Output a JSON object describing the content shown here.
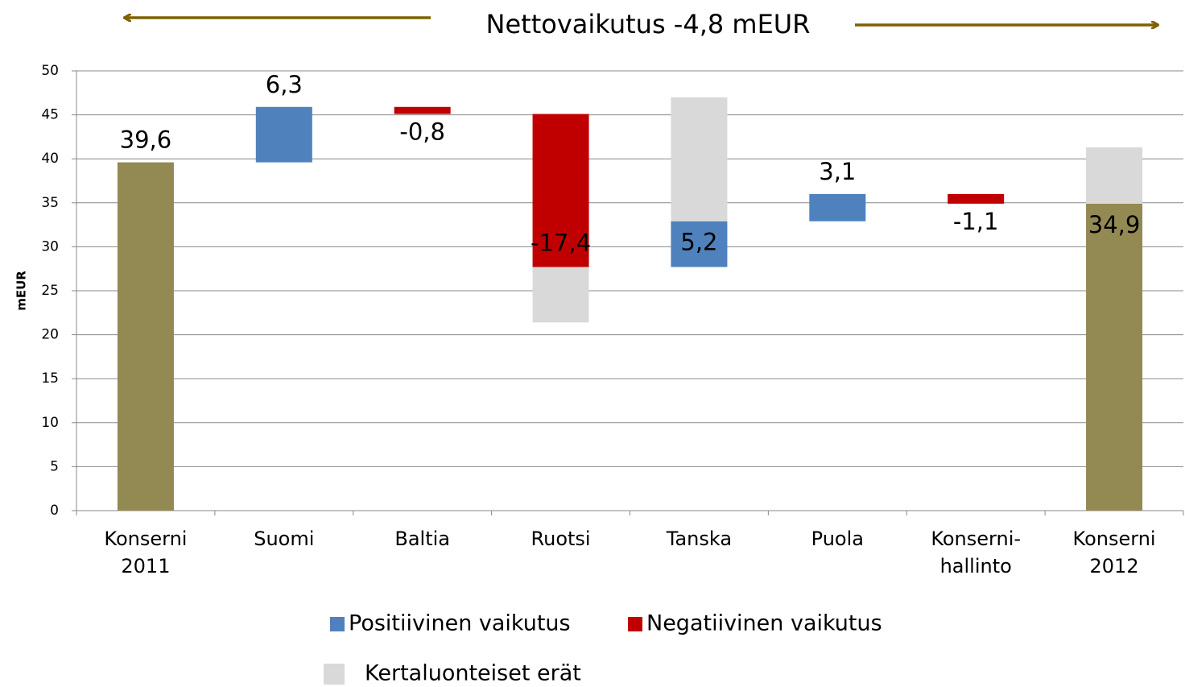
{
  "chart_data": {
    "type": "waterfall",
    "title": "Nettovaikutus -4,8 mEUR",
    "y_label": "mEUR",
    "categories": [
      [
        "Konserni",
        "2011"
      ],
      [
        "Suomi"
      ],
      [
        "Baltia"
      ],
      [
        "Ruotsi"
      ],
      [
        "Tanska"
      ],
      [
        "Puola"
      ],
      [
        "Konserni-",
        "hallinto"
      ],
      [
        "Konserni",
        "2012"
      ]
    ],
    "totals": {
      "color": "#938953",
      "values": [
        39.6,
        null,
        null,
        null,
        null,
        null,
        null,
        34.9
      ],
      "value_labels": [
        "39,6",
        null,
        null,
        null,
        null,
        null,
        null,
        "34,9"
      ]
    },
    "series": [
      {
        "name": "Positiivinen vaikutus",
        "color": "#4f81bd",
        "role": "change",
        "values": [
          null,
          6.3,
          null,
          null,
          5.2,
          3.1,
          null,
          null
        ],
        "value_labels": [
          null,
          "6,3",
          null,
          null,
          "5,2",
          "3,1",
          null,
          null
        ]
      },
      {
        "name": "Negatiivinen vaikutus",
        "color": "#c00000",
        "role": "change",
        "values": [
          null,
          null,
          -0.8,
          -17.4,
          null,
          null,
          -1.1,
          null
        ],
        "value_labels": [
          null,
          null,
          "-0,8",
          "-17,4",
          null,
          null,
          "-1,1",
          null
        ]
      },
      {
        "name": "Kertaluonteiset erät",
        "color": "#d9d9d9",
        "role": "one-off",
        "values": [
          null,
          null,
          null,
          -6.3,
          14.1,
          null,
          null,
          6.4
        ]
      }
    ],
    "ylim": [
      0,
      50
    ],
    "yticks": [
      0,
      5,
      10,
      15,
      20,
      25,
      30,
      35,
      40,
      45,
      50
    ],
    "grid": true
  }
}
